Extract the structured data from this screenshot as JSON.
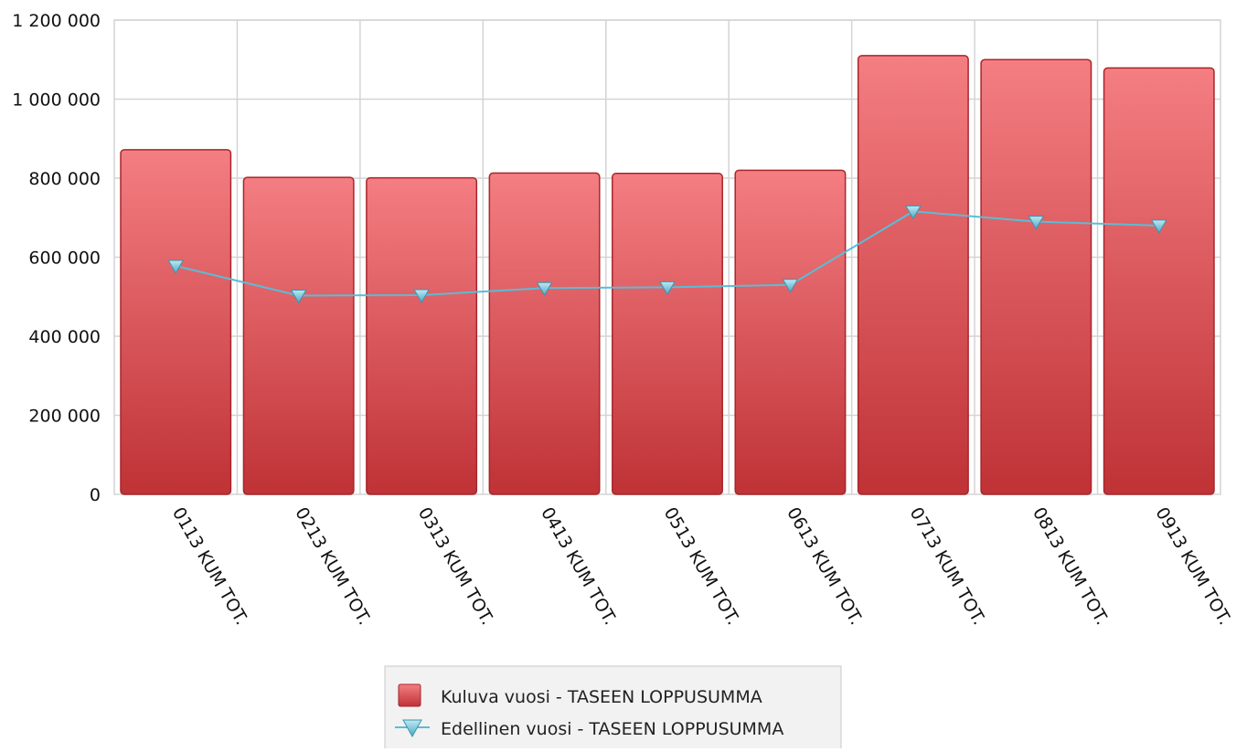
{
  "chart_data": {
    "type": "bar",
    "title": "",
    "xlabel": "",
    "ylabel": "",
    "categories": [
      "0113 KUM TOT.",
      "0213 KUM TOT.",
      "0313 KUM TOT.",
      "0413 KUM TOT.",
      "0513 KUM TOT.",
      "0613 KUM TOT.",
      "0713 KUM TOT.",
      "0813 KUM TOT.",
      "0913 KUM TOT."
    ],
    "series": [
      {
        "name": "Kuluva vuosi - TASEEN LOPPUSUMMA",
        "type": "bar",
        "color": "#d94a4e",
        "values": [
          872000,
          802000,
          801000,
          813000,
          812000,
          820000,
          1110000,
          1100000,
          1079000
        ]
      },
      {
        "name": "Edellinen vuosi - TASEEN LOPPUSUMMA",
        "type": "line",
        "marker": "triangle-down",
        "color": "#5bbcd6",
        "values": [
          578000,
          503000,
          504000,
          522000,
          524000,
          530000,
          716000,
          690000,
          680000
        ]
      }
    ],
    "ylim": [
      0,
      1200000
    ],
    "yticks": [
      0,
      200000,
      400000,
      600000,
      800000,
      1000000,
      1200000
    ],
    "ytick_labels": [
      "0",
      "200 000",
      "400 000",
      "600 000",
      "800 000",
      "1 000 000",
      "1 200 000"
    ],
    "grid": true,
    "legend_position": "bottom-center"
  }
}
